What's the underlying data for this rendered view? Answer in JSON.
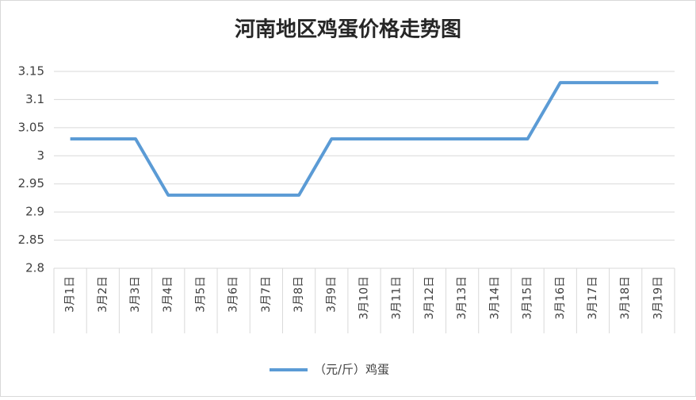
{
  "chart_data": {
    "type": "line",
    "title": "河南地区鸡蛋价格走势图",
    "categories": [
      "3月1日",
      "3月2日",
      "3月3日",
      "3月4日",
      "3月5日",
      "3月6日",
      "3月7日",
      "3月8日",
      "3月9日",
      "3月10日",
      "3月11日",
      "3月12日",
      "3月13日",
      "3月14日",
      "3月15日",
      "3月16日",
      "3月17日",
      "3月18日",
      "3月19日"
    ],
    "series": [
      {
        "name": "（元/斤）鸡蛋",
        "color": "#5b9bd5",
        "values": [
          3.03,
          3.03,
          3.03,
          2.93,
          2.93,
          2.93,
          2.93,
          2.93,
          3.03,
          3.03,
          3.03,
          3.03,
          3.03,
          3.03,
          3.03,
          3.13,
          3.13,
          3.13,
          3.13
        ]
      }
    ],
    "ylim": [
      2.8,
      3.15
    ],
    "yticks": [
      2.8,
      2.85,
      2.9,
      2.95,
      3,
      3.05,
      3.1,
      3.15
    ],
    "grid": true,
    "legend": "bottom"
  }
}
